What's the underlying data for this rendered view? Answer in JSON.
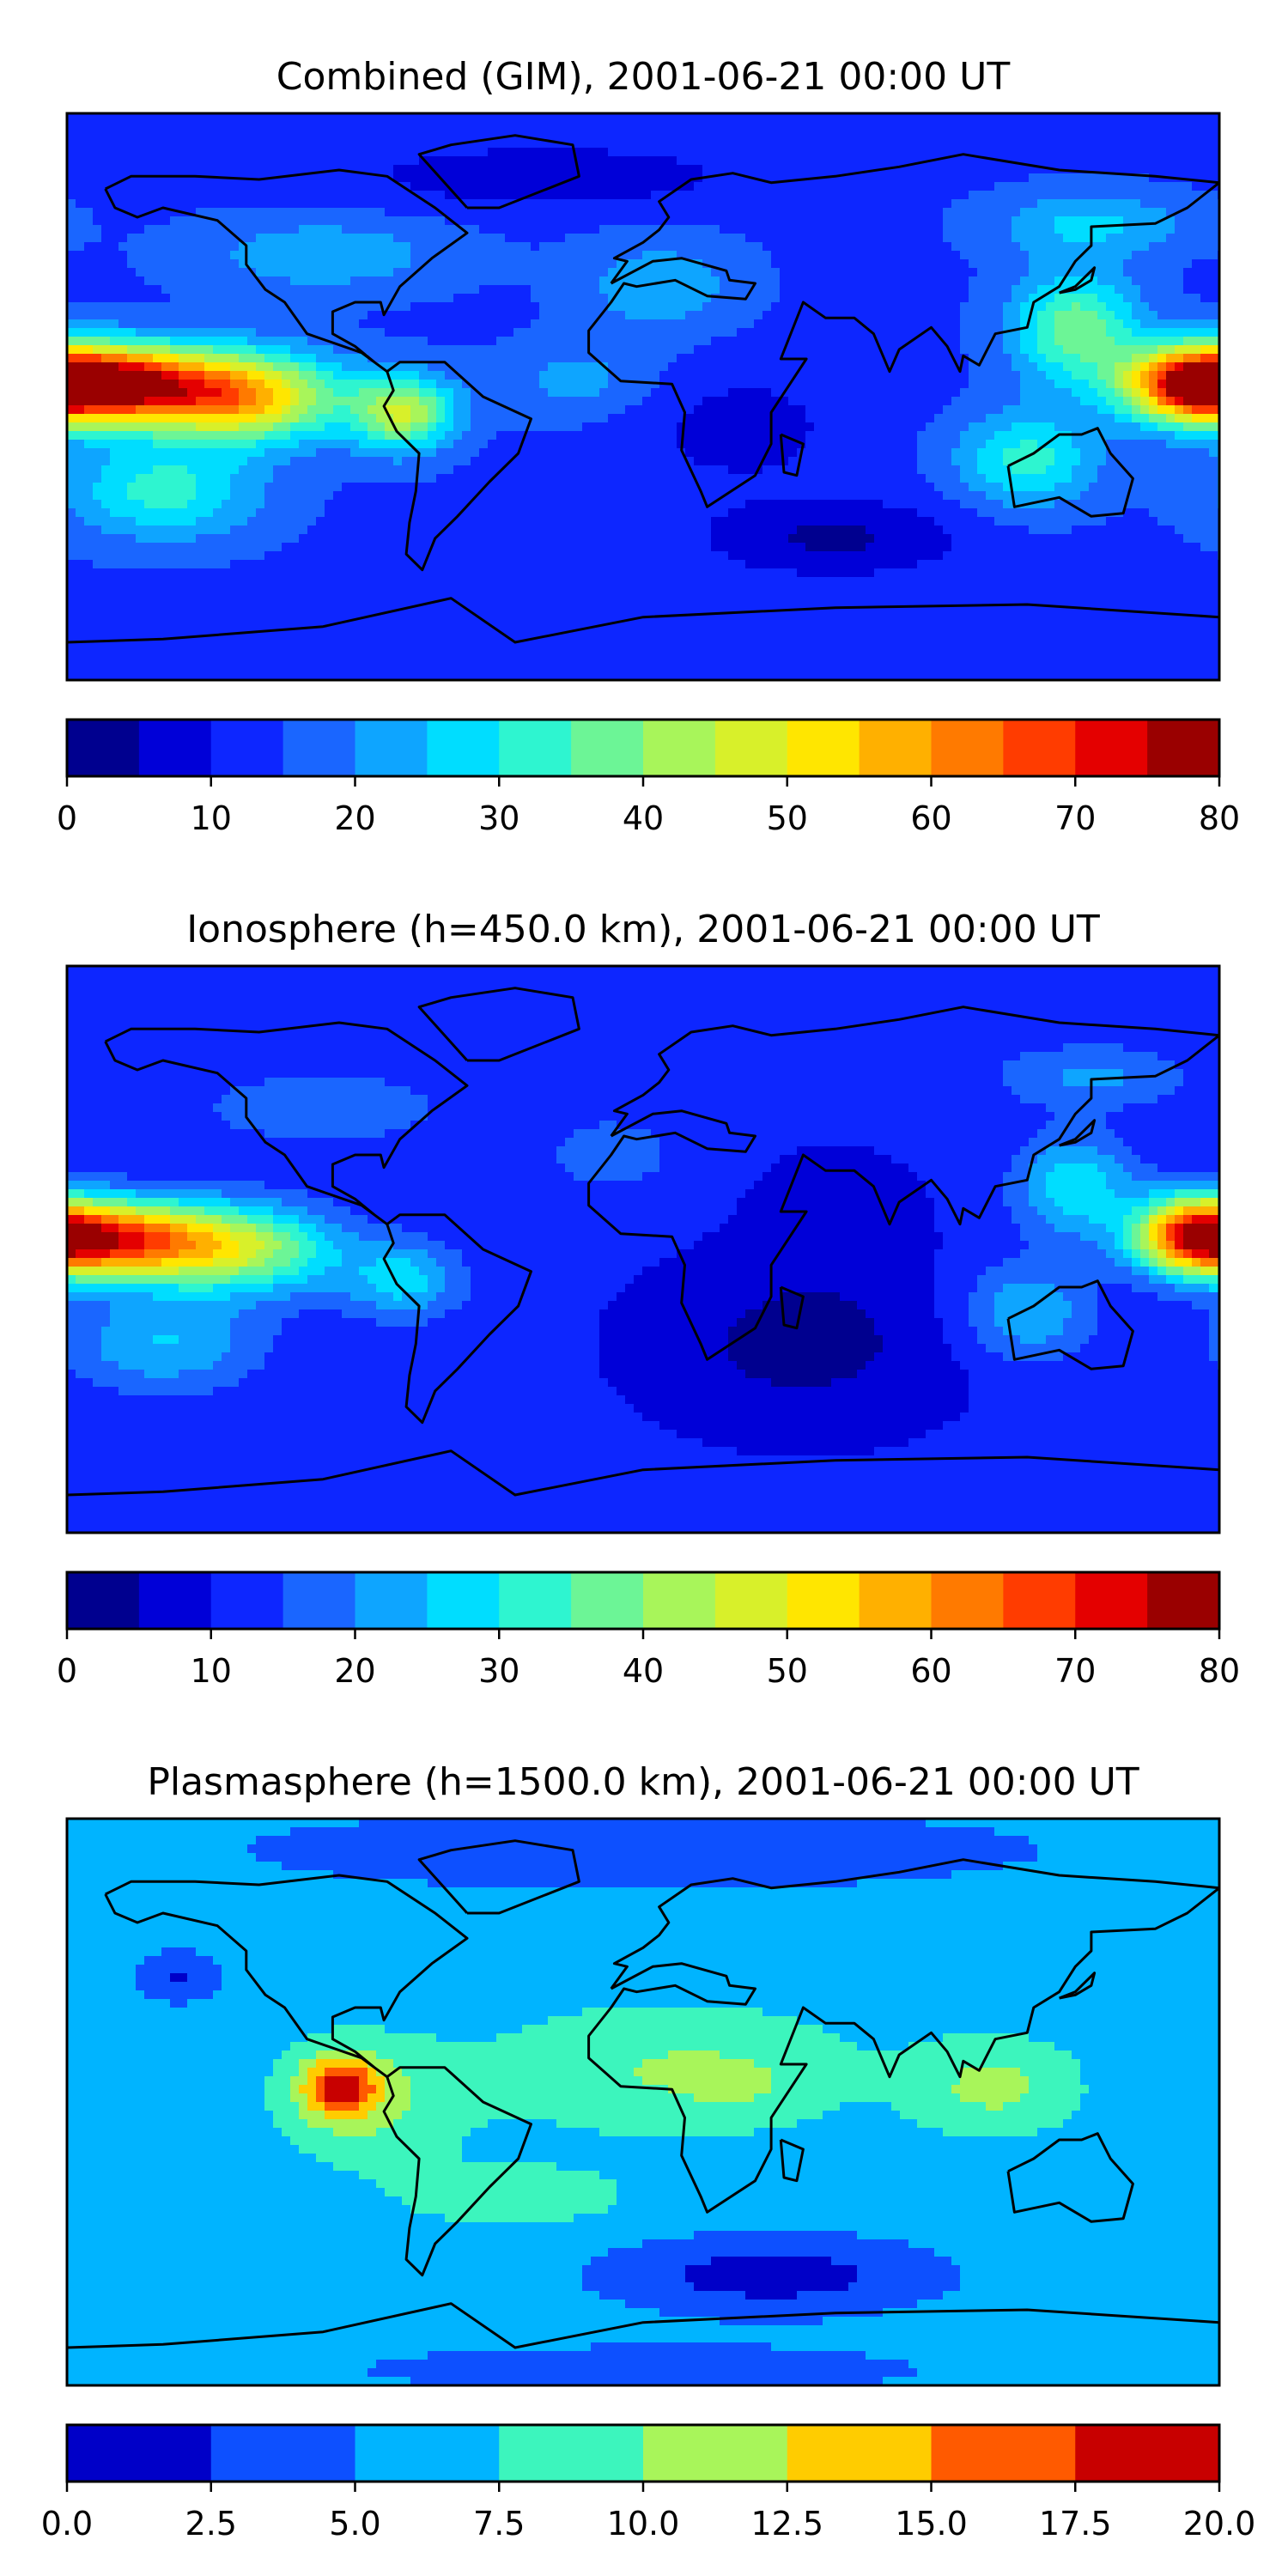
{
  "chart_data": [
    {
      "type": "heatmap",
      "title": "Combined (GIM), 2001-06-21 00:00 UT",
      "colorbar": {
        "min": 0,
        "max": 80,
        "step": 5,
        "ticks": [
          0,
          10,
          20,
          30,
          40,
          50,
          60,
          70,
          80
        ],
        "tick_labels": [
          "0",
          "10",
          "20",
          "30",
          "40",
          "50",
          "60",
          "70",
          "80"
        ],
        "colors": [
          "#00008f",
          "#0000d8",
          "#0d26ff",
          "#1a66ff",
          "#0ea5ff",
          "#00ddff",
          "#2ef5d0",
          "#6cf596",
          "#a8f55a",
          "#d8f02a",
          "#ffe600",
          "#ffb000",
          "#ff7a00",
          "#ff3c00",
          "#e40000",
          "#9a0000"
        ]
      },
      "field": {
        "background": 14,
        "blobs": [
          {
            "lon": -165,
            "lat": 4,
            "amp": 56,
            "slon": 30,
            "slat": 12
          },
          {
            "lon": -125,
            "lat": 0,
            "amp": 42,
            "slon": 30,
            "slat": 14
          },
          {
            "lon": -75,
            "lat": -5,
            "amp": 30,
            "slon": 16,
            "slat": 12
          },
          {
            "lon": 172,
            "lat": 4,
            "amp": 48,
            "slon": 22,
            "slat": 12
          },
          {
            "lon": 135,
            "lat": 22,
            "amp": 24,
            "slon": 20,
            "slat": 18
          },
          {
            "lon": 120,
            "lat": -20,
            "amp": 18,
            "slon": 22,
            "slat": 15
          },
          {
            "lon": 140,
            "lat": 55,
            "amp": 12,
            "slon": 30,
            "slat": 10
          },
          {
            "lon": -100,
            "lat": 45,
            "amp": 10,
            "slon": 40,
            "slat": 12
          },
          {
            "lon": 5,
            "lat": 35,
            "amp": 10,
            "slon": 25,
            "slat": 15
          },
          {
            "lon": -20,
            "lat": 5,
            "amp": 8,
            "slon": 25,
            "slat": 12
          },
          {
            "lon": -150,
            "lat": -30,
            "amp": 18,
            "slon": 30,
            "slat": 15
          },
          {
            "lon": 60,
            "lat": -45,
            "amp": -10,
            "slon": 40,
            "slat": 12
          },
          {
            "lon": -30,
            "lat": 70,
            "amp": -8,
            "slon": 60,
            "slat": 10
          },
          {
            "lon": 30,
            "lat": -10,
            "amp": -6,
            "slon": 35,
            "slat": 20
          }
        ]
      }
    },
    {
      "type": "heatmap",
      "title": "Ionosphere  (h=450.0 km), 2001-06-21 00:00 UT",
      "colorbar": {
        "min": 0,
        "max": 80,
        "step": 5,
        "ticks": [
          0,
          10,
          20,
          30,
          40,
          50,
          60,
          70,
          80
        ],
        "tick_labels": [
          "0",
          "10",
          "20",
          "30",
          "40",
          "50",
          "60",
          "70",
          "80"
        ],
        "colors": [
          "#00008f",
          "#0000d8",
          "#0d26ff",
          "#1a66ff",
          "#0ea5ff",
          "#00ddff",
          "#2ef5d0",
          "#6cf596",
          "#a8f55a",
          "#d8f02a",
          "#ffe600",
          "#ffb000",
          "#ff7a00",
          "#ff3c00",
          "#e40000",
          "#9a0000"
        ]
      },
      "field": {
        "background": 11,
        "blobs": [
          {
            "lon": -165,
            "lat": 3,
            "amp": 53,
            "slon": 30,
            "slat": 12
          },
          {
            "lon": -125,
            "lat": 0,
            "amp": 30,
            "slon": 30,
            "slat": 14
          },
          {
            "lon": -75,
            "lat": -10,
            "amp": 16,
            "slon": 18,
            "slat": 12
          },
          {
            "lon": 172,
            "lat": 5,
            "amp": 44,
            "slon": 18,
            "slat": 12
          },
          {
            "lon": 135,
            "lat": 20,
            "amp": 18,
            "slon": 18,
            "slat": 16
          },
          {
            "lon": 120,
            "lat": -20,
            "amp": 14,
            "slon": 20,
            "slat": 15
          },
          {
            "lon": 140,
            "lat": 55,
            "amp": 10,
            "slon": 30,
            "slat": 10
          },
          {
            "lon": -100,
            "lat": 45,
            "amp": 8,
            "slon": 40,
            "slat": 12
          },
          {
            "lon": -10,
            "lat": 30,
            "amp": 6,
            "slon": 25,
            "slat": 15
          },
          {
            "lon": -150,
            "lat": -30,
            "amp": 14,
            "slon": 30,
            "slat": 15
          },
          {
            "lon": 50,
            "lat": -30,
            "amp": -8,
            "slon": 45,
            "slat": 25
          },
          {
            "lon": 60,
            "lat": 10,
            "amp": -4,
            "slon": 25,
            "slat": 20
          }
        ]
      }
    },
    {
      "type": "heatmap",
      "title": "Plasmasphere (h=1500.0 km), 2001-06-21 00:00 UT",
      "colorbar": {
        "min": 0.0,
        "max": 20.0,
        "step": 2.5,
        "ticks": [
          0.0,
          2.5,
          5.0,
          7.5,
          10.0,
          12.5,
          15.0,
          17.5,
          20.0
        ],
        "tick_labels": [
          "0.0",
          "2.5",
          "5.0",
          "7.5",
          "10.0",
          "12.5",
          "15.0",
          "17.5",
          "20.0"
        ],
        "colors": [
          "#0000c8",
          "#0d50ff",
          "#00b4ff",
          "#3cf5bd",
          "#a8f55a",
          "#ffcc00",
          "#ff5a00",
          "#c80000"
        ]
      },
      "field": {
        "background": 6.2,
        "blobs": [
          {
            "lon": -95,
            "lat": 5,
            "amp": 10,
            "slon": 12,
            "slat": 10
          },
          {
            "lon": -85,
            "lat": 0,
            "amp": 4,
            "slon": 28,
            "slat": 20
          },
          {
            "lon": 10,
            "lat": 10,
            "amp": 4,
            "slon": 55,
            "slat": 20
          },
          {
            "lon": 110,
            "lat": 5,
            "amp": 4.5,
            "slon": 25,
            "slat": 15
          },
          {
            "lon": -40,
            "lat": -30,
            "amp": 3,
            "slon": 35,
            "slat": 10
          },
          {
            "lon": 30,
            "lat": 5,
            "amp": 1.5,
            "slon": 15,
            "slat": 8
          },
          {
            "lon": -145,
            "lat": 40,
            "amp": -4,
            "slon": 12,
            "slat": 8
          },
          {
            "lon": 40,
            "lat": -55,
            "amp": -5,
            "slon": 50,
            "slat": 12
          },
          {
            "lon": 0,
            "lat": 80,
            "amp": -3.5,
            "slon": 120,
            "slat": 12
          },
          {
            "lon": 0,
            "lat": -85,
            "amp": -2,
            "slon": 120,
            "slat": 10
          }
        ]
      }
    }
  ],
  "continent_color": "#000000"
}
